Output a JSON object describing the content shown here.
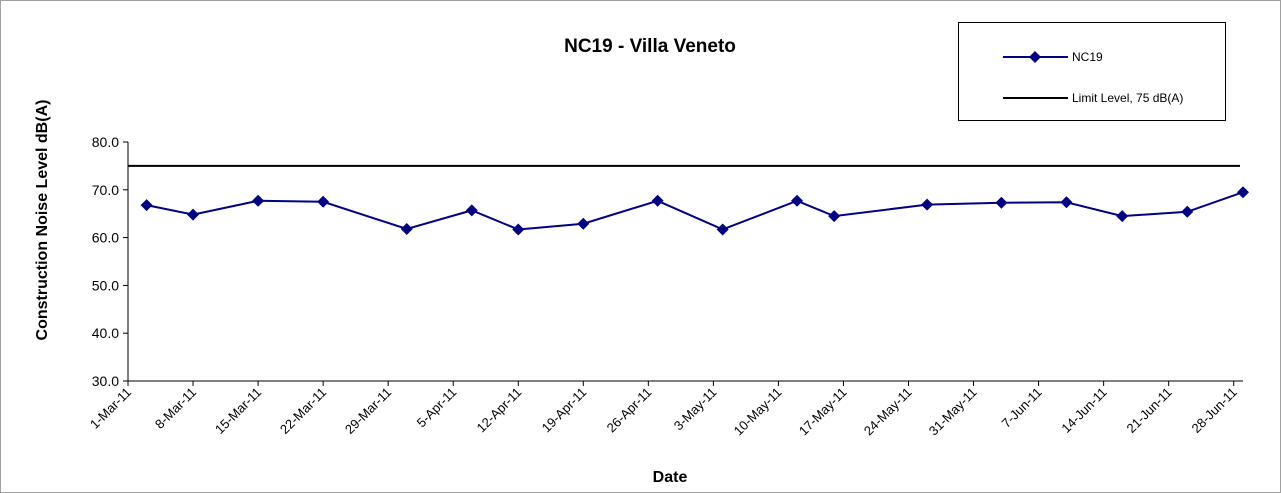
{
  "chart_data": {
    "type": "line",
    "title": "NC19 - Villa Veneto",
    "xlabel": "Date",
    "ylabel": "Construction Noise Level  dB(A)",
    "x": [
      "2011-03-03",
      "2011-03-08",
      "2011-03-15",
      "2011-03-22",
      "2011-03-31",
      "2011-04-07",
      "2011-04-12",
      "2011-04-19",
      "2011-04-27",
      "2011-05-04",
      "2011-05-12",
      "2011-05-16",
      "2011-05-26",
      "2011-06-03",
      "2011-06-10",
      "2011-06-16",
      "2011-06-23",
      "2011-06-29"
    ],
    "series": [
      {
        "name": "NC19",
        "color": "#000080",
        "values": [
          66.8,
          64.8,
          67.7,
          67.5,
          61.8,
          65.7,
          61.7,
          62.9,
          67.7,
          61.7,
          67.7,
          64.5,
          66.9,
          67.3,
          67.4,
          64.5,
          65.4,
          69.5
        ]
      }
    ],
    "limit": {
      "name": "Limit Level, 75 dB(A)",
      "color": "#000000",
      "value": 75
    },
    "xlim": [
      "2011-03-01",
      "2011-06-29"
    ],
    "xticks": [
      {
        "value": "2011-03-01",
        "label": "1-Mar-11"
      },
      {
        "value": "2011-03-08",
        "label": "8-Mar-11"
      },
      {
        "value": "2011-03-15",
        "label": "15-Mar-11"
      },
      {
        "value": "2011-03-22",
        "label": "22-Mar-11"
      },
      {
        "value": "2011-03-29",
        "label": "29-Mar-11"
      },
      {
        "value": "2011-04-05",
        "label": "5-Apr-11"
      },
      {
        "value": "2011-04-12",
        "label": "12-Apr-11"
      },
      {
        "value": "2011-04-19",
        "label": "19-Apr-11"
      },
      {
        "value": "2011-04-26",
        "label": "26-Apr-11"
      },
      {
        "value": "2011-05-03",
        "label": "3-May-11"
      },
      {
        "value": "2011-05-10",
        "label": "10-May-11"
      },
      {
        "value": "2011-05-17",
        "label": "17-May-11"
      },
      {
        "value": "2011-05-24",
        "label": "24-May-11"
      },
      {
        "value": "2011-05-31",
        "label": "31-May-11"
      },
      {
        "value": "2011-06-07",
        "label": "7-Jun-11"
      },
      {
        "value": "2011-06-14",
        "label": "14-Jun-11"
      },
      {
        "value": "2011-06-21",
        "label": "21-Jun-11"
      },
      {
        "value": "2011-06-28",
        "label": "28-Jun-11"
      }
    ],
    "ylim": [
      30,
      80
    ],
    "yticks": [
      {
        "value": 30,
        "label": "30.0"
      },
      {
        "value": 40,
        "label": "40.0"
      },
      {
        "value": 50,
        "label": "50.0"
      },
      {
        "value": 60,
        "label": "60.0"
      },
      {
        "value": 70,
        "label": "70.0"
      },
      {
        "value": 80,
        "label": "80.0"
      }
    ],
    "legend": "top-right"
  }
}
